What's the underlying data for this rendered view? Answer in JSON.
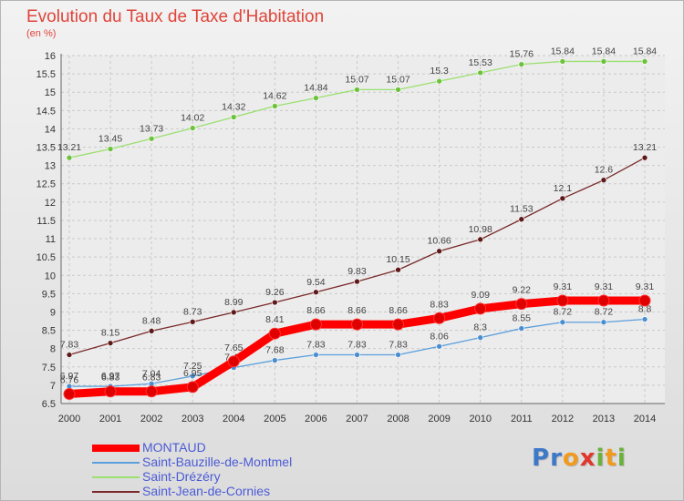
{
  "header": {
    "title": "Evolution du Taux de Taxe d'Habitation",
    "unit": "(en %)"
  },
  "logo": {
    "text": "Proxiti",
    "letters": [
      "P",
      "r",
      "o",
      "x",
      "i",
      "t",
      "i"
    ],
    "colors": [
      "#3d78c9",
      "#3d78c9",
      "#f29a1d",
      "#e0382c",
      "#6bb13a",
      "#f29a1d",
      "#6bb13a"
    ]
  },
  "chart_data": {
    "type": "line",
    "title": "Evolution du Taux de Taxe d'Habitation",
    "ylabel": "(en %)",
    "xlabel": "",
    "ylim": [
      6.5,
      16
    ],
    "y_ticks": [
      "6.5",
      "7",
      "7.5",
      "8",
      "8.5",
      "9",
      "9.5",
      "10",
      "10.5",
      "11",
      "11.5",
      "12",
      "12.5",
      "13",
      "13.5",
      "14",
      "14.5",
      "15",
      "15.5",
      "16"
    ],
    "x": [
      "2000",
      "2001",
      "2002",
      "2003",
      "2004",
      "2005",
      "2006",
      "2007",
      "2008",
      "2009",
      "2010",
      "2011",
      "2012",
      "2013",
      "2014"
    ],
    "grid": true,
    "legend_position": "bottom-left",
    "series": [
      {
        "name": "Saint-Drézéry",
        "color": "#9be070",
        "marker": "#6cc23a",
        "values": [
          13.21,
          13.45,
          13.73,
          14.02,
          14.32,
          14.62,
          14.84,
          15.07,
          15.07,
          15.3,
          15.53,
          15.76,
          15.84,
          15.84,
          15.84
        ],
        "labels": [
          "13.21",
          "13.45",
          "13.73",
          "14.02",
          "14.32",
          "14.62",
          "14.84",
          "15.07",
          "15.07",
          "15.3",
          "15.53",
          "15.76",
          "15.84",
          "15.84",
          "15.84"
        ]
      },
      {
        "name": "Saint-Jean-de-Cornies",
        "color": "#7a2a2a",
        "marker": "#5e1a1a",
        "values": [
          7.83,
          8.15,
          8.48,
          8.73,
          8.99,
          9.26,
          9.54,
          9.83,
          10.15,
          10.66,
          10.98,
          11.53,
          12.1,
          12.6,
          13.21
        ],
        "labels": [
          "7.83",
          "8.15",
          "8.48",
          "8.73",
          "8.99",
          "9.26",
          "9.54",
          "9.83",
          "10.15",
          "10.66",
          "10.98",
          "11.53",
          "12.1",
          "12.6",
          "13.21"
        ]
      },
      {
        "name": "Saint-Bauzille-de-Montmel",
        "color": "#5b9fdc",
        "marker": "#4a8ed0",
        "values": [
          6.97,
          6.97,
          7.04,
          7.25,
          7.48,
          7.68,
          7.83,
          7.83,
          7.83,
          8.06,
          8.3,
          8.55,
          8.72,
          8.72,
          8.8
        ],
        "labels": [
          "6.97",
          "6.97",
          "7.04",
          "7.25",
          "7.48",
          "7.68",
          "7.83",
          "7.83",
          "7.83",
          "8.06",
          "8.3",
          "8.55",
          "8.72",
          "8.72",
          "8.8"
        ]
      },
      {
        "name": "MONTAUD",
        "color": "#ff0000",
        "marker": "#e00000",
        "values": [
          6.76,
          6.83,
          6.83,
          6.95,
          7.65,
          8.41,
          8.66,
          8.66,
          8.66,
          8.83,
          9.09,
          9.22,
          9.31,
          9.31,
          9.31
        ],
        "labels": [
          "6.76",
          "6.83",
          "6.83",
          "6.95",
          "7.65",
          "8.41",
          "8.66",
          "8.66",
          "8.66",
          "8.83",
          "9.09",
          "9.22",
          "9.31",
          "9.31",
          "9.31"
        ]
      }
    ],
    "legend": [
      "MONTAUD",
      "Saint-Bauzille-de-Montmel",
      "Saint-Drézéry",
      "Saint-Jean-de-Cornies"
    ]
  }
}
